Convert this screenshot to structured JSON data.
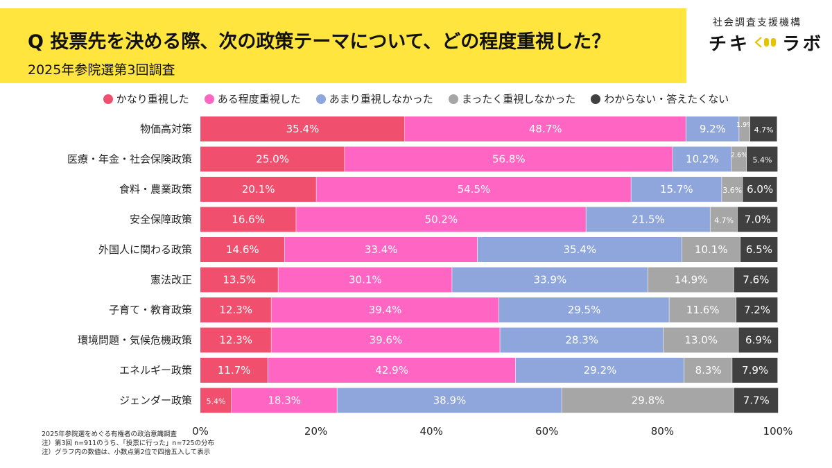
{
  "header": {
    "question": "Q 投票先を決める際、次の政策テーマについて、どの程度重視した？",
    "subtitle": "2025年参院選第3回調査"
  },
  "logo": {
    "org": "社会調査支援機構",
    "name_a": "チキ",
    "name_b": "ラボ"
  },
  "notes": [
    "2025年参院選をめぐる有権者の政治意識調査",
    "注）第3回 n=911のうち、「投票に行った」n=725の分布",
    "注）グラフ内の数値は、小数点第2位で四捨五入して表示"
  ],
  "chart_data": {
    "type": "bar",
    "orientation": "horizontal",
    "stacked": true,
    "percent_of_total": true,
    "categories": [
      "物価高対策",
      "医療・年金・社会保険政策",
      "食料・農業政策",
      "安全保障政策",
      "外国人に関わる政策",
      "憲法改正",
      "子育て・教育政策",
      "環境問題・気候危機政策",
      "エネルギー政策",
      "ジェンダー政策"
    ],
    "series": [
      {
        "name": "かなり重視した",
        "color": "#f0506e",
        "values": [
          35.4,
          25.0,
          20.1,
          16.6,
          14.6,
          13.5,
          12.3,
          12.3,
          11.7,
          5.4
        ]
      },
      {
        "name": "ある程度重視した",
        "color": "#ff66c4",
        "values": [
          48.7,
          56.8,
          54.5,
          50.2,
          33.4,
          30.1,
          39.4,
          39.6,
          42.9,
          18.3
        ]
      },
      {
        "name": "あまり重視しなかった",
        "color": "#8fa6dc",
        "values": [
          9.2,
          10.2,
          15.7,
          21.5,
          35.4,
          33.9,
          29.5,
          28.3,
          29.2,
          38.9
        ]
      },
      {
        "name": "まったく重視しなかった",
        "color": "#a6a6a6",
        "values": [
          1.9,
          2.6,
          3.6,
          4.7,
          10.1,
          14.9,
          11.6,
          13.0,
          8.3,
          29.8
        ]
      },
      {
        "name": "わからない・答えたくない",
        "color": "#404040",
        "values": [
          4.7,
          5.4,
          6.0,
          7.0,
          6.5,
          7.6,
          7.2,
          6.9,
          7.9,
          7.7
        ]
      }
    ],
    "xlim": [
      0,
      100
    ],
    "xticks": [
      "0%",
      "20%",
      "40%",
      "60%",
      "80%",
      "100%"
    ],
    "legend_position": "top",
    "grid": false
  }
}
